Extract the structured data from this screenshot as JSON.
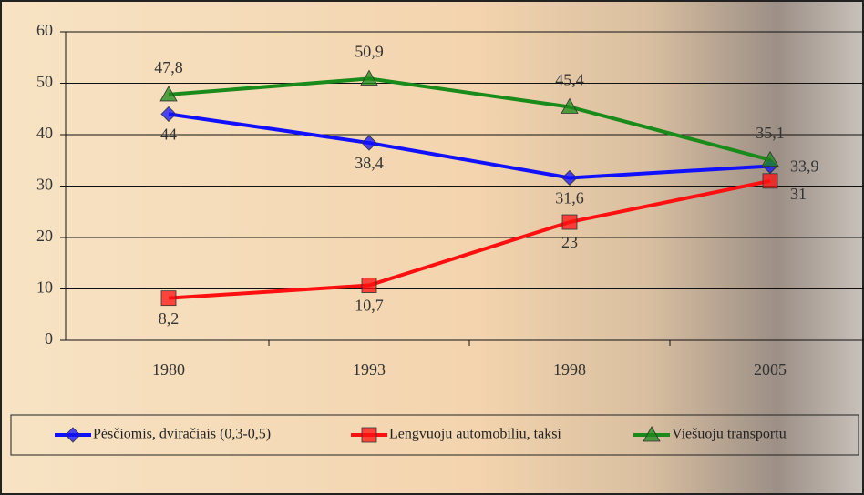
{
  "chart_data": {
    "type": "line",
    "categories": [
      "1980",
      "1993",
      "1998",
      "2005"
    ],
    "series": [
      {
        "name": "Pėsčiomis, dviračiais (0,3-0,5)",
        "color": "#1010ff",
        "marker": "diamond",
        "values": [
          44,
          38.4,
          31.6,
          33.9
        ],
        "value_labels": [
          "44",
          "38,4",
          "31,6",
          "33,9"
        ]
      },
      {
        "name": "Lengvuoju automobiliu, taksi",
        "color": "#ff1010",
        "marker": "square",
        "values": [
          8.2,
          10.7,
          23,
          31
        ],
        "value_labels": [
          "8,2",
          "10,7",
          "23",
          "31"
        ]
      },
      {
        "name": "Viešuoju transportu",
        "color": "#1a8a1a",
        "marker": "triangle",
        "values": [
          47.8,
          50.9,
          45.4,
          35.1
        ],
        "value_labels": [
          "47,8",
          "50,9",
          "45,4",
          "35,1"
        ]
      }
    ],
    "ylim": [
      0,
      60
    ],
    "yticks": [
      0,
      10,
      20,
      30,
      40,
      50,
      60
    ],
    "grid": true
  }
}
